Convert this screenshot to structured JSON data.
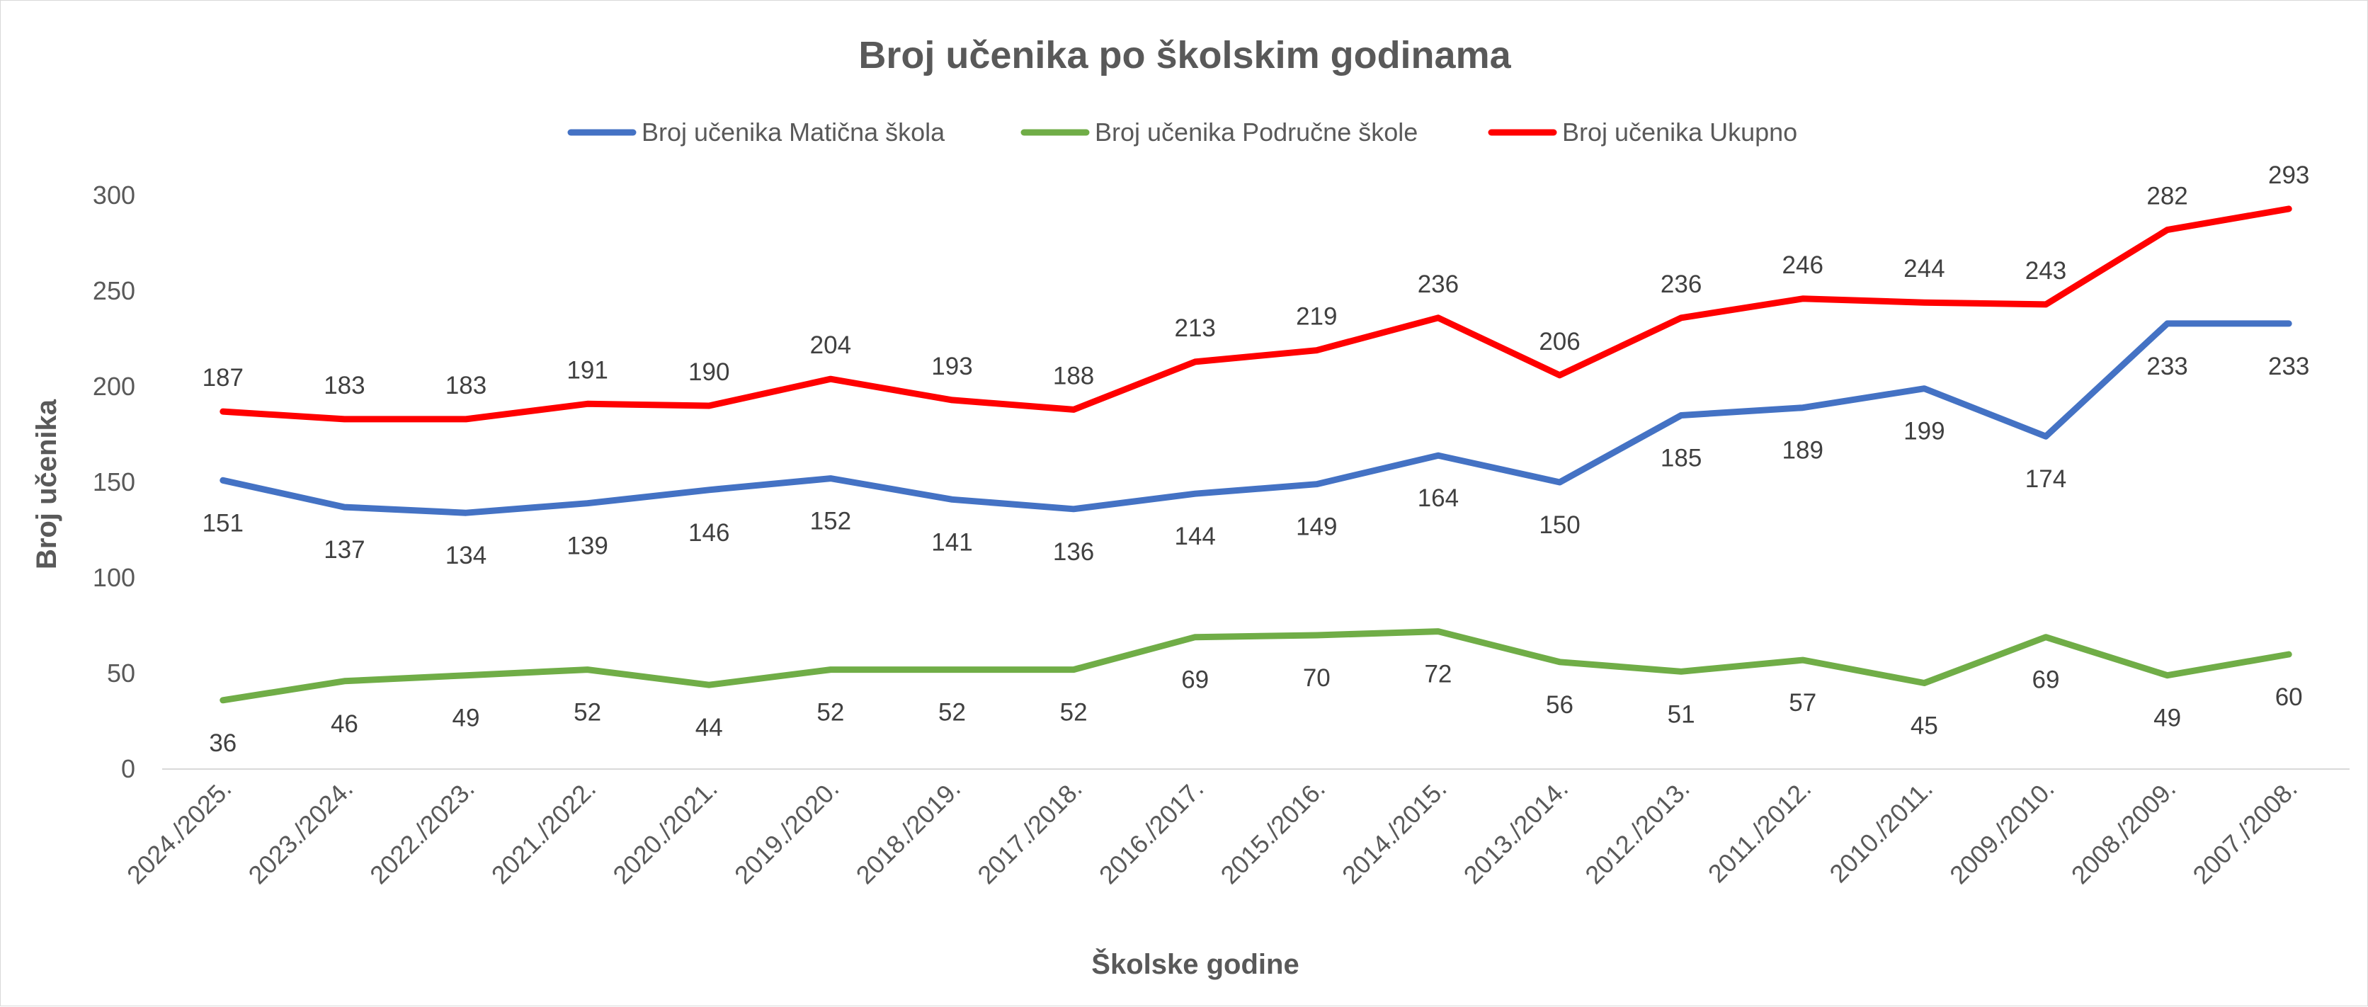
{
  "chart_data": {
    "type": "line",
    "title": "Broj učenika po školskim godinama",
    "xlabel": "Školske godine",
    "ylabel": "Broj učenika",
    "ylim": [
      0,
      300
    ],
    "yticks": [
      0,
      50,
      100,
      150,
      200,
      250,
      300
    ],
    "grid": false,
    "legend_position": "top",
    "categories": [
      "2024./2025.",
      "2023./2024.",
      "2022./2023.",
      "2021./2022.",
      "2020./2021.",
      "2019./2020.",
      "2018./2019.",
      "2017./2018.",
      "2016./2017.",
      "2015./2016.",
      "2014./2015.",
      "2013./2014.",
      "2012./2013.",
      "2011./2012.",
      "2010./2011.",
      "2009./2010.",
      "2008./2009.",
      "2007./2008."
    ],
    "series": [
      {
        "name": "Broj učenika Matična škola",
        "color": "#4472C4",
        "values": [
          151,
          137,
          134,
          139,
          146,
          152,
          141,
          136,
          144,
          149,
          164,
          150,
          185,
          189,
          199,
          174,
          233,
          233
        ],
        "label_position": "below"
      },
      {
        "name": "Broj učenika Područne škole",
        "color": "#70AD47",
        "values": [
          36,
          46,
          49,
          52,
          44,
          52,
          52,
          52,
          69,
          70,
          72,
          56,
          51,
          57,
          45,
          69,
          49,
          60
        ],
        "label_position": "below"
      },
      {
        "name": "Broj učenika Ukupno",
        "color": "#FF0000",
        "values": [
          187,
          183,
          183,
          191,
          190,
          204,
          193,
          188,
          213,
          219,
          236,
          206,
          236,
          246,
          244,
          243,
          282,
          293
        ],
        "label_position": "above"
      }
    ]
  }
}
